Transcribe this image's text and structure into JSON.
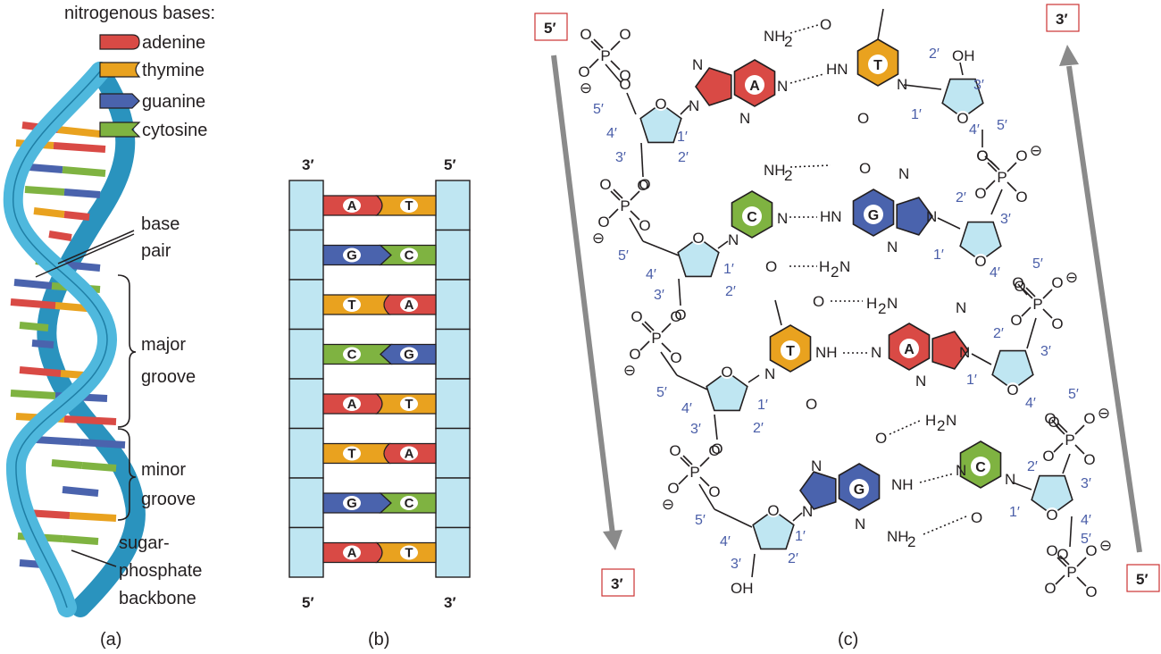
{
  "legend": {
    "title": "nitrogenous bases:",
    "items": [
      {
        "name": "adenine",
        "color": "#d94a45"
      },
      {
        "name": "thymine",
        "color": "#e9a21f"
      },
      {
        "name": "guanine",
        "color": "#4a63ad"
      },
      {
        "name": "cytosine",
        "color": "#7fb341"
      }
    ]
  },
  "panel_a": {
    "caption": "(a)",
    "labels": {
      "base_pair_1": "base",
      "base_pair_2": "pair",
      "major_1": "major",
      "major_2": "groove",
      "minor_1": "minor",
      "minor_2": "groove",
      "backbone_1": "sugar-",
      "backbone_2": "phosphate",
      "backbone_3": "backbone"
    }
  },
  "panel_b": {
    "caption": "(b)",
    "top_left": "3′",
    "top_right": "5′",
    "bottom_left": "5′",
    "bottom_right": "3′",
    "pairs": [
      [
        "A",
        "T"
      ],
      [
        "G",
        "C"
      ],
      [
        "T",
        "A"
      ],
      [
        "C",
        "G"
      ],
      [
        "A",
        "T"
      ],
      [
        "T",
        "A"
      ],
      [
        "G",
        "C"
      ],
      [
        "A",
        "T"
      ]
    ]
  },
  "panel_c": {
    "caption": "(c)",
    "left_top": "5′",
    "left_bottom": "3′",
    "right_top": "3′",
    "right_bottom": "5′",
    "base_letters": [
      "A",
      "T",
      "C",
      "G",
      "T",
      "A",
      "G",
      "C"
    ],
    "atoms": {
      "nh2": "NH",
      "sub2": "2",
      "h2n": "H",
      "n_suffix": "N",
      "n": "N",
      "hn": "HN",
      "nh": "NH",
      "o": "O",
      "oh": "OH",
      "p": "P",
      "minus": "⊖"
    },
    "primes": {
      "one": "1′",
      "two": "2′",
      "three": "3′",
      "four": "4′",
      "five": "5′"
    }
  }
}
